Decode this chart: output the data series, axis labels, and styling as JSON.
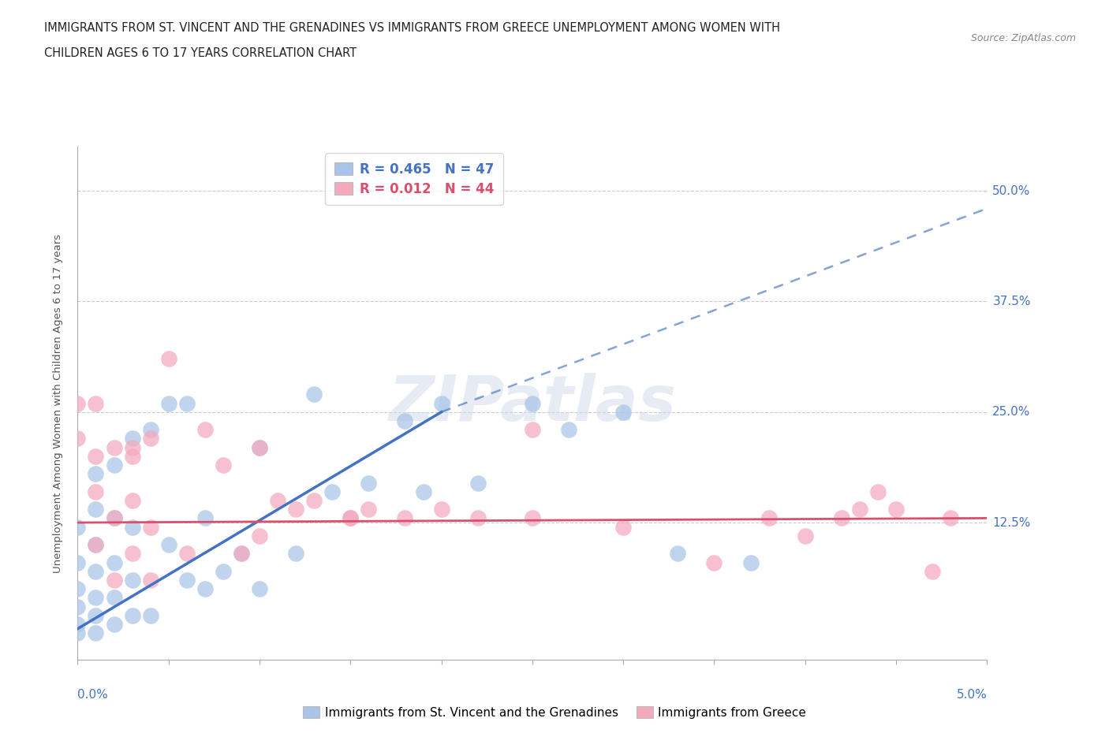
{
  "title_line1": "IMMIGRANTS FROM ST. VINCENT AND THE GRENADINES VS IMMIGRANTS FROM GREECE UNEMPLOYMENT AMONG WOMEN WITH",
  "title_line2": "CHILDREN AGES 6 TO 17 YEARS CORRELATION CHART",
  "source": "Source: ZipAtlas.com",
  "ylabel": "Unemployment Among Women with Children Ages 6 to 17 years",
  "legend_label1": "Immigrants from St. Vincent and the Grenadines",
  "legend_label2": "Immigrants from Greece",
  "R1": "0.465",
  "N1": "47",
  "R2": "0.012",
  "N2": "44",
  "color_blue": "#a8c4e8",
  "color_pink": "#f4a8be",
  "line_blue": "#4472c4",
  "line_pink": "#d94f6e",
  "label_color": "#4472c4",
  "xlim": [
    0.0,
    0.05
  ],
  "ylim": [
    -0.03,
    0.55
  ],
  "ytick_vals": [
    0.0,
    0.125,
    0.25,
    0.375,
    0.5
  ],
  "ytick_labels": [
    "",
    "12.5%",
    "25.0%",
    "37.5%",
    "50.0%"
  ],
  "watermark": "ZIPatlas",
  "blue_x": [
    0.0,
    0.0,
    0.0,
    0.0,
    0.0,
    0.0,
    0.001,
    0.001,
    0.001,
    0.001,
    0.001,
    0.001,
    0.001,
    0.002,
    0.002,
    0.002,
    0.002,
    0.002,
    0.003,
    0.003,
    0.003,
    0.003,
    0.004,
    0.004,
    0.005,
    0.005,
    0.006,
    0.006,
    0.007,
    0.007,
    0.008,
    0.009,
    0.01,
    0.01,
    0.012,
    0.013,
    0.014,
    0.016,
    0.018,
    0.019,
    0.02,
    0.022,
    0.025,
    0.027,
    0.03,
    0.033,
    0.037
  ],
  "blue_y": [
    0.0,
    0.01,
    0.03,
    0.05,
    0.08,
    0.12,
    0.0,
    0.02,
    0.04,
    0.07,
    0.1,
    0.14,
    0.18,
    0.01,
    0.04,
    0.08,
    0.13,
    0.19,
    0.02,
    0.06,
    0.12,
    0.22,
    0.02,
    0.23,
    0.1,
    0.26,
    0.06,
    0.26,
    0.05,
    0.13,
    0.07,
    0.09,
    0.05,
    0.21,
    0.09,
    0.27,
    0.16,
    0.17,
    0.24,
    0.16,
    0.26,
    0.17,
    0.26,
    0.23,
    0.25,
    0.09,
    0.08
  ],
  "pink_x": [
    0.0,
    0.0,
    0.001,
    0.001,
    0.001,
    0.001,
    0.002,
    0.002,
    0.002,
    0.003,
    0.003,
    0.003,
    0.004,
    0.004,
    0.004,
    0.005,
    0.006,
    0.007,
    0.008,
    0.009,
    0.01,
    0.011,
    0.012,
    0.013,
    0.015,
    0.016,
    0.018,
    0.02,
    0.022,
    0.025,
    0.03,
    0.035,
    0.038,
    0.04,
    0.042,
    0.043,
    0.044,
    0.045,
    0.047,
    0.048,
    0.025,
    0.01,
    0.015,
    0.003
  ],
  "pink_y": [
    0.22,
    0.26,
    0.1,
    0.16,
    0.2,
    0.26,
    0.06,
    0.13,
    0.21,
    0.09,
    0.15,
    0.21,
    0.06,
    0.22,
    0.12,
    0.31,
    0.09,
    0.23,
    0.19,
    0.09,
    0.11,
    0.15,
    0.14,
    0.15,
    0.13,
    0.14,
    0.13,
    0.14,
    0.13,
    0.13,
    0.12,
    0.08,
    0.13,
    0.11,
    0.13,
    0.14,
    0.16,
    0.14,
    0.07,
    0.13,
    0.23,
    0.21,
    0.13,
    0.2
  ],
  "blue_line_x": [
    0.0,
    0.02,
    0.05
  ],
  "blue_line_y": [
    0.005,
    0.25,
    0.48
  ],
  "pink_line_x": [
    0.0,
    0.05
  ],
  "pink_line_y": [
    0.125,
    0.13
  ]
}
